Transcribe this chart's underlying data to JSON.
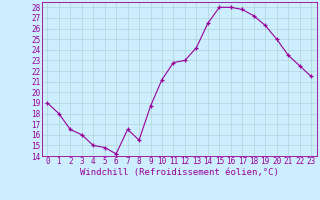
{
  "x": [
    0,
    1,
    2,
    3,
    4,
    5,
    6,
    7,
    8,
    9,
    10,
    11,
    12,
    13,
    14,
    15,
    16,
    17,
    18,
    19,
    20,
    21,
    22,
    23
  ],
  "y": [
    19,
    18,
    16.5,
    16,
    15,
    14.8,
    14.2,
    16.5,
    15.5,
    18.7,
    21.2,
    22.8,
    23.0,
    24.2,
    26.5,
    28.0,
    28.0,
    27.8,
    27.2,
    26.3,
    25.0,
    23.5,
    22.5,
    21.5
  ],
  "line_color": "#990099",
  "marker": "+",
  "bg_color": "#cceeff",
  "grid_color": "#aacccc",
  "xlabel": "Windchill (Refroidissement éolien,°C)",
  "xlabel_color": "#990099",
  "ylim": [
    14,
    28.5
  ],
  "ytick_min": 14,
  "ytick_max": 28,
  "xticks": [
    0,
    1,
    2,
    3,
    4,
    5,
    6,
    7,
    8,
    9,
    10,
    11,
    12,
    13,
    14,
    15,
    16,
    17,
    18,
    19,
    20,
    21,
    22,
    23
  ],
  "tick_color": "#990099",
  "tick_fontsize": 5.5,
  "xlabel_fontsize": 6.5,
  "spine_color": "#990099",
  "figsize": [
    3.2,
    2.0
  ],
  "dpi": 100
}
